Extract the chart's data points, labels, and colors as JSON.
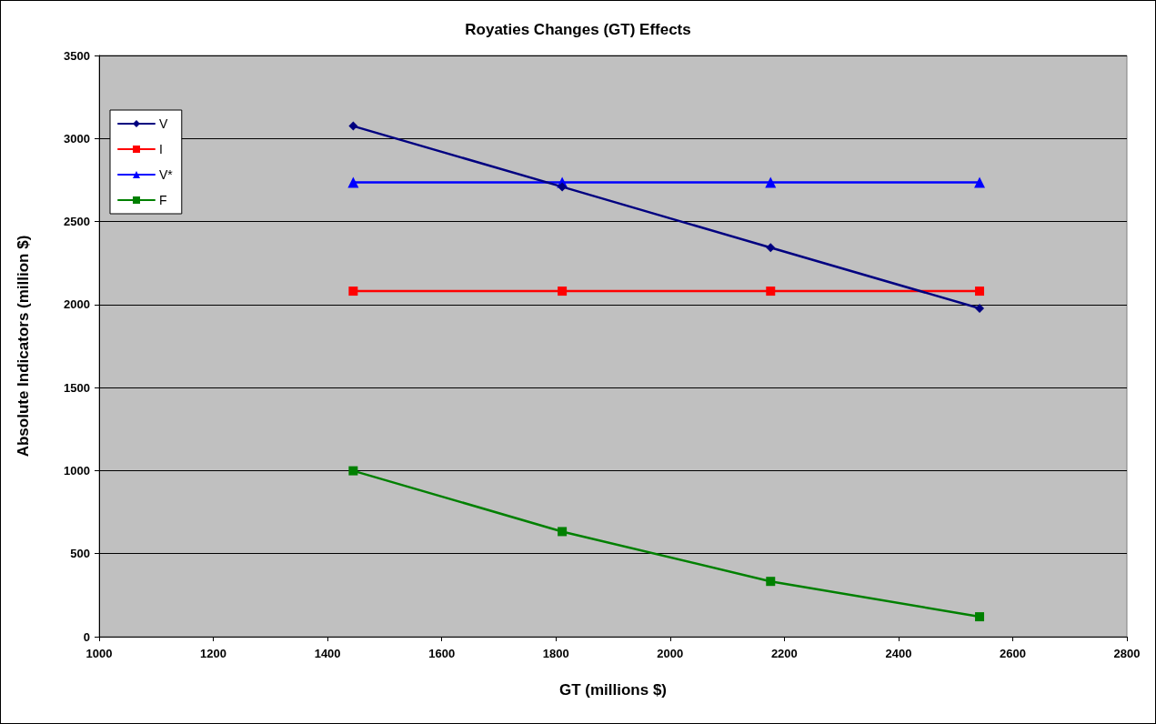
{
  "chart_data": {
    "type": "line",
    "title": "Royaties Changes (GT) Effects",
    "xlabel": "GT (millions $)",
    "ylabel": "Absolute Indicators (million $)",
    "x": [
      1445,
      1811,
      2176,
      2542
    ],
    "series": [
      {
        "name": "V",
        "color": "#000080",
        "marker": "diamond",
        "values": [
          3075,
          2709,
          2343,
          1977
        ]
      },
      {
        "name": "I",
        "color": "#ff0000",
        "marker": "square",
        "values": [
          2081,
          2081,
          2081,
          2081
        ]
      },
      {
        "name": "V*",
        "color": "#0000ff",
        "marker": "triangle",
        "values": [
          2736,
          2736,
          2736,
          2736
        ]
      },
      {
        "name": "F",
        "color": "#008000",
        "marker": "square",
        "values": [
          999,
          633,
          333,
          120
        ]
      }
    ],
    "xlim": [
      1000,
      2800
    ],
    "xticks": [
      1000,
      1200,
      1400,
      1600,
      1800,
      2000,
      2200,
      2400,
      2600,
      2800
    ],
    "ylim": [
      0,
      3500
    ],
    "yticks": [
      0,
      500,
      1000,
      1500,
      2000,
      2500,
      3000,
      3500
    ],
    "grid": "y",
    "legend": "top left",
    "line_style": "solid"
  }
}
